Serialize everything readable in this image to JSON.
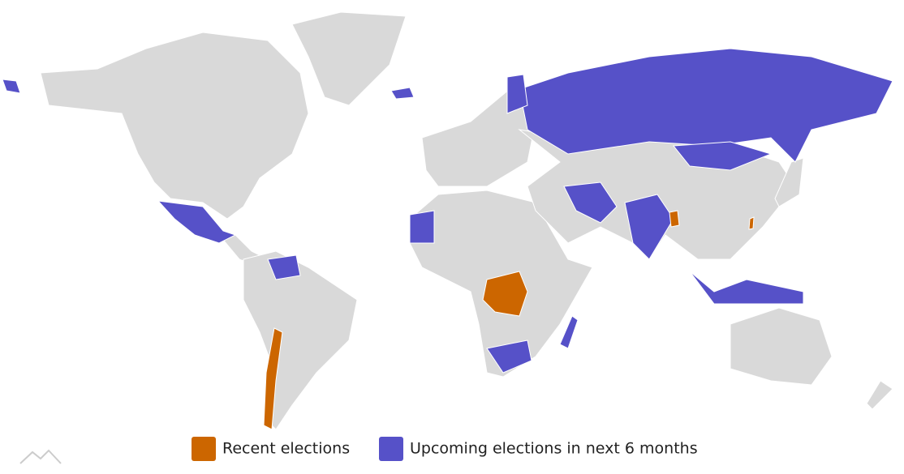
{
  "legend": {
    "items": [
      {
        "label": "Recent elections",
        "color": "#cc6600"
      },
      {
        "label": "Upcoming elections in next 6 months",
        "color": "#5651c8"
      }
    ]
  }
}
